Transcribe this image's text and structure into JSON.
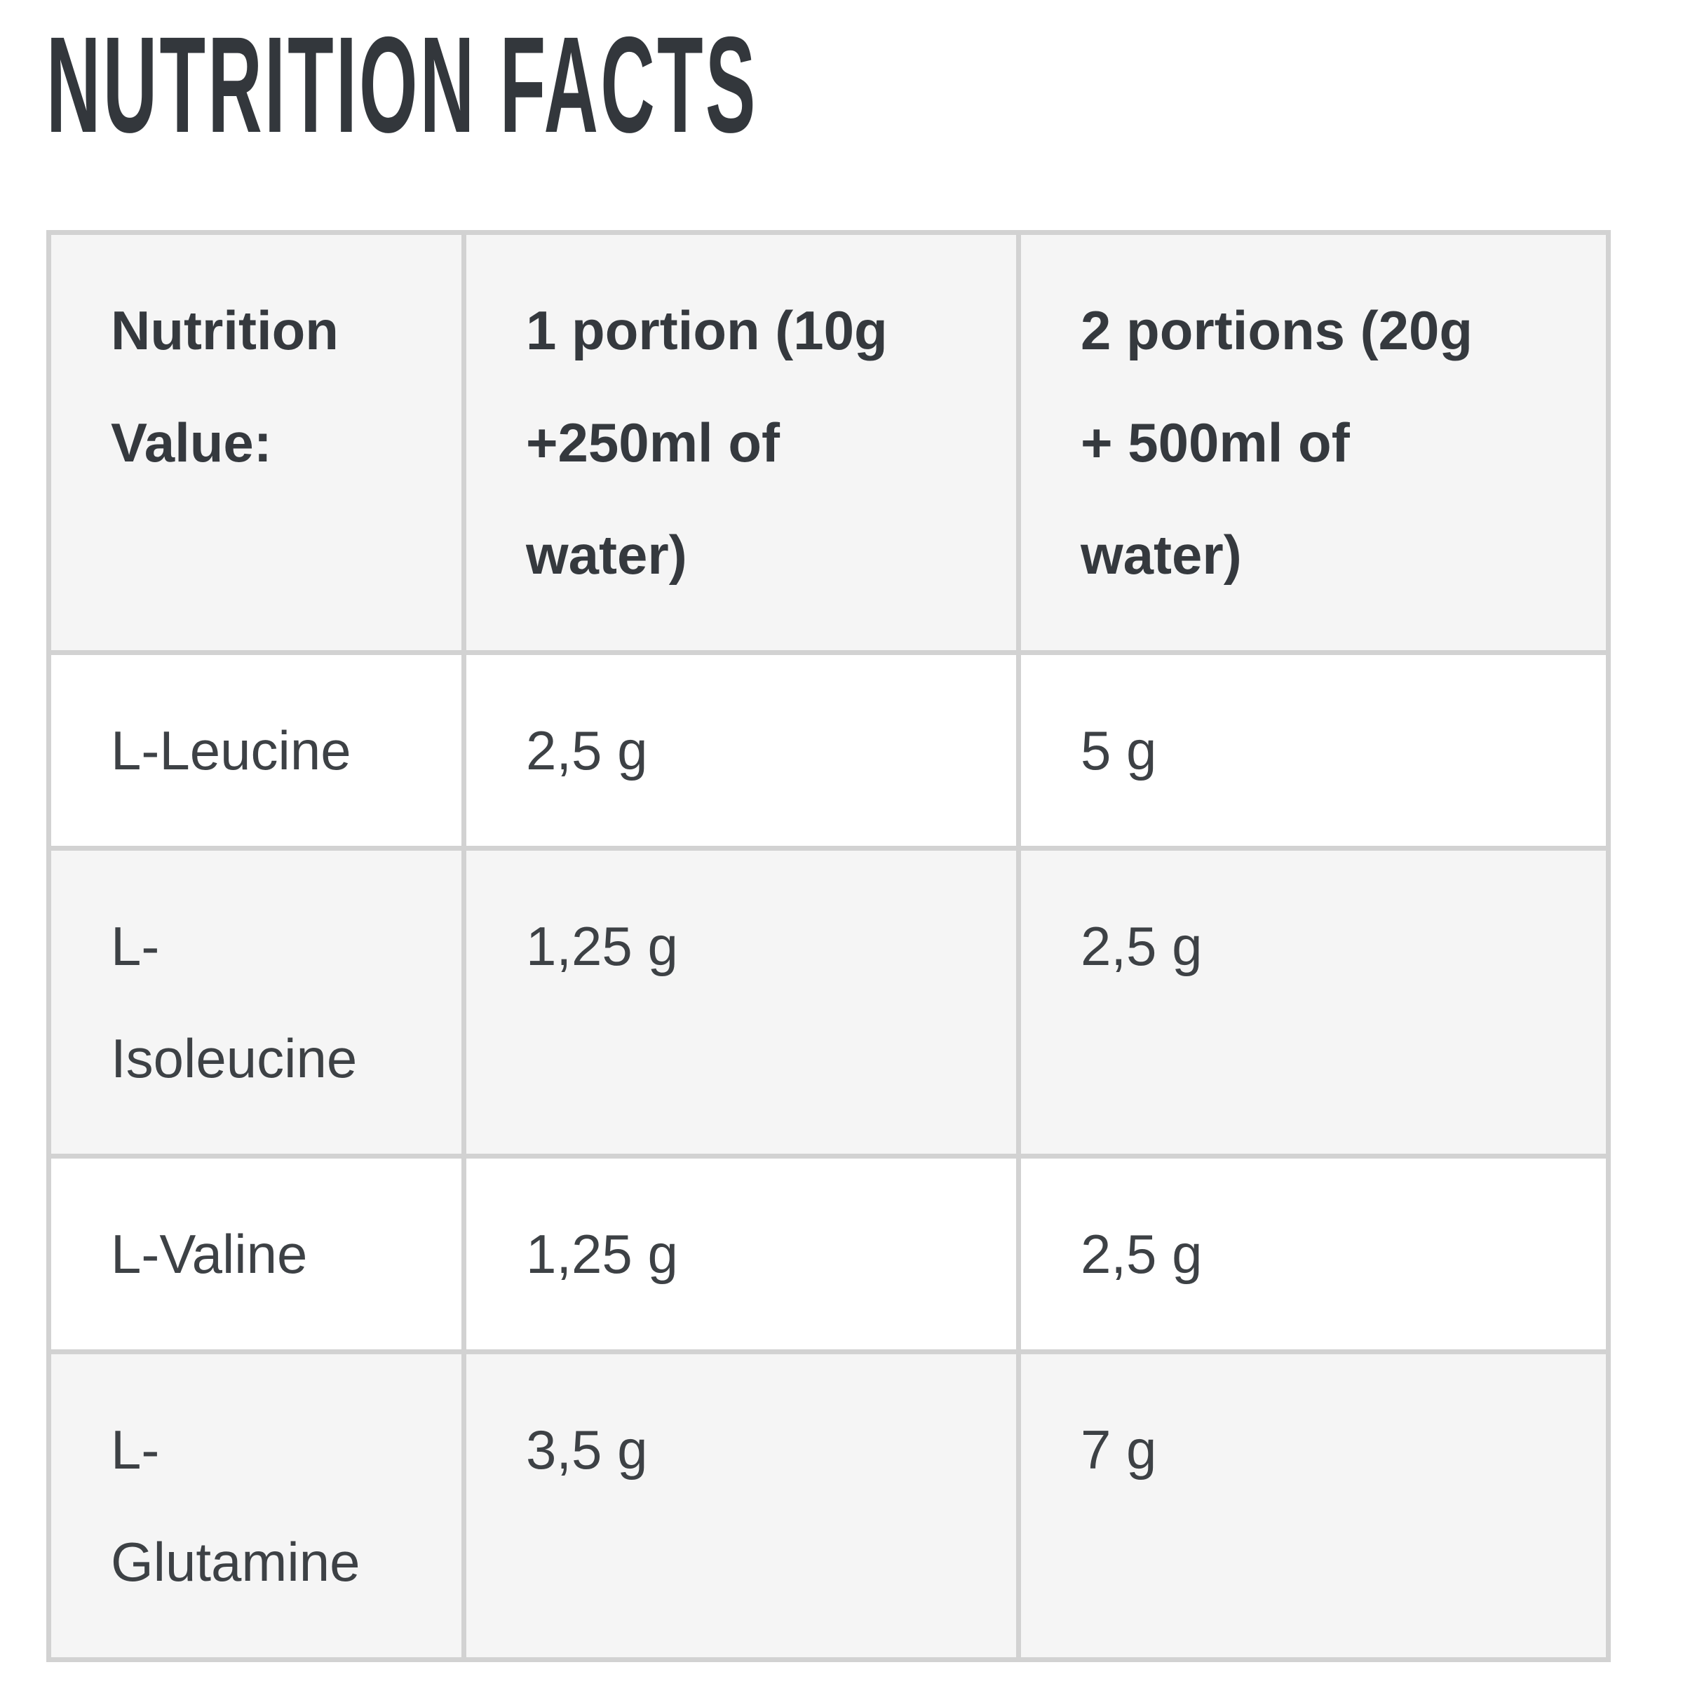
{
  "page": {
    "title": "NUTRITION FACTS"
  },
  "colors": {
    "table_border": "#d2d2d2",
    "header_bg": "#f5f5f5",
    "alt_row_bg": "#f5f5f5",
    "title_text": "#33373c",
    "body_text": "#3d4145"
  },
  "table": {
    "columns": [
      {
        "label": "Nutrition\nValue:"
      },
      {
        "label": "1 portion (10g\n+250ml of\nwater)"
      },
      {
        "label": "2 portions (20g\n+ 500ml of\nwater)"
      }
    ],
    "rows": [
      {
        "label": "L-Leucine",
        "portion1": "2,5 g",
        "portion2": "5 g"
      },
      {
        "label": "L-\nIsoleucine",
        "portion1": "1,25 g",
        "portion2": "2,5 g"
      },
      {
        "label": "L-Valine",
        "portion1": "1,25 g",
        "portion2": "2,5 g"
      },
      {
        "label": "L-\nGlutamine",
        "portion1": "3,5 g",
        "portion2": "7 g"
      }
    ]
  }
}
